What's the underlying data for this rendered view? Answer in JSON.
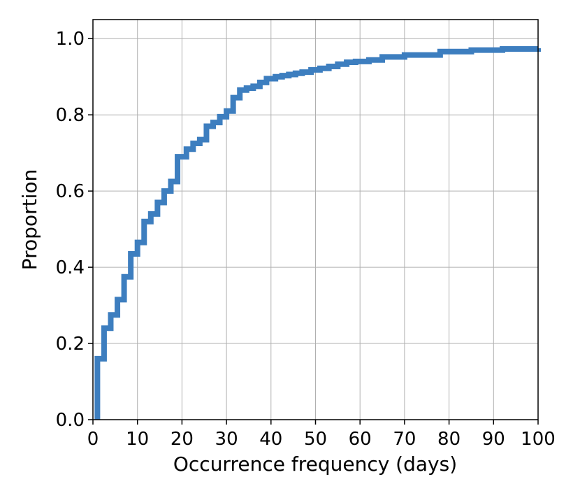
{
  "chart_data": {
    "type": "line",
    "subtype": "ecdf-step",
    "xlabel": "Occurrence frequency (days)",
    "ylabel": "Proportion",
    "xlim": [
      0,
      100
    ],
    "ylim": [
      0,
      1.05
    ],
    "x_ticks": [
      "0",
      "10",
      "20",
      "30",
      "40",
      "50",
      "60",
      "70",
      "80",
      "90",
      "100"
    ],
    "y_ticks": [
      "0.0",
      "0.2",
      "0.4",
      "0.6",
      "0.8",
      "1.0"
    ],
    "grid": true,
    "line_color": "#3d7ebf",
    "series": [
      {
        "x": [
          1,
          2.5,
          4,
          5.5,
          7,
          8.5,
          10,
          11.5,
          13,
          14.5,
          16,
          17.5,
          19,
          20,
          21,
          22.5,
          24,
          25.5,
          27,
          28.5,
          30,
          31.5,
          33,
          34.5,
          36,
          37.5,
          39,
          41,
          42.5,
          44,
          45.5,
          47,
          49,
          51,
          53,
          55,
          57,
          59,
          62,
          65,
          70,
          78,
          85,
          92,
          100
        ],
        "y": [
          0.16,
          0.24,
          0.275,
          0.315,
          0.375,
          0.435,
          0.465,
          0.52,
          0.54,
          0.57,
          0.6,
          0.625,
          0.69,
          0.69,
          0.71,
          0.725,
          0.735,
          0.77,
          0.78,
          0.795,
          0.81,
          0.845,
          0.865,
          0.87,
          0.875,
          0.885,
          0.895,
          0.9,
          0.903,
          0.906,
          0.909,
          0.912,
          0.918,
          0.922,
          0.927,
          0.933,
          0.938,
          0.94,
          0.944,
          0.952,
          0.957,
          0.966,
          0.97,
          0.973,
          0.975
        ]
      }
    ]
  }
}
